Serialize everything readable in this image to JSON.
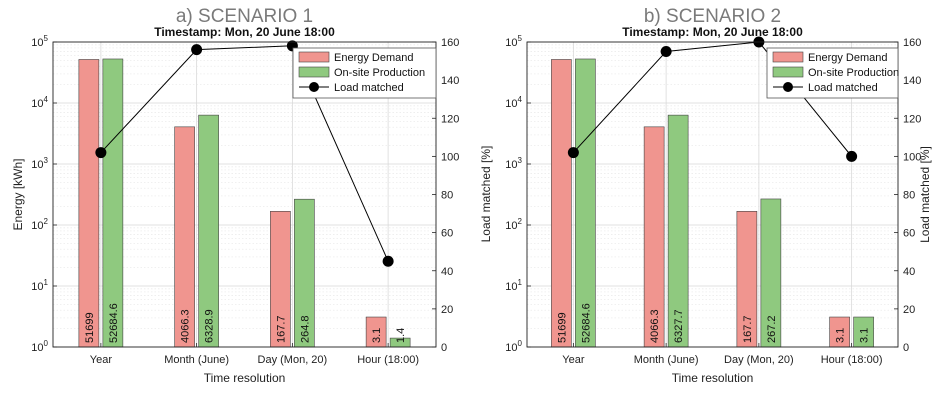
{
  "colors": {
    "demand": "#f0958f",
    "production": "#8fc97f",
    "line": "#000000",
    "grid": "#d9d9d9"
  },
  "chart_data": [
    {
      "type": "bar",
      "title": "a)   SCENARIO 1",
      "subtitle": "Timestamp: Mon, 20 June 18:00",
      "xlabel": "Time resolution",
      "ylabel": "Energy [kWh]",
      "ylabel_right": "Load matched [%]",
      "yscale": "log",
      "ylim": [
        1,
        100000
      ],
      "ylim_right": [
        0,
        160
      ],
      "y_ticks": [
        "10^0",
        "10^1",
        "10^2",
        "10^3",
        "10^4",
        "10^5"
      ],
      "y_ticks_right": [
        "0",
        "20",
        "40",
        "60",
        "80",
        "100",
        "120",
        "140",
        "160"
      ],
      "categories": [
        "Year",
        "Month (June)",
        "Day (Mon, 20)",
        "Hour (18:00)"
      ],
      "series": [
        {
          "name": "Energy Demand",
          "values": [
            51699,
            4066.3,
            167.7,
            3.1
          ],
          "labels": [
            "51699",
            "4066.3",
            "167.7",
            "3.1"
          ]
        },
        {
          "name": "On-site Production",
          "values": [
            52684.6,
            6328.9,
            264.8,
            1.4
          ],
          "labels": [
            "52684.6",
            "6328.9",
            "264.8",
            "1.4"
          ]
        }
      ],
      "line_series": {
        "name": "Load matched",
        "axis": "right",
        "values": [
          102,
          156,
          158,
          45
        ]
      },
      "grid": true,
      "legend": "top-right"
    },
    {
      "type": "bar",
      "title": "b) SCENARIO 2",
      "subtitle": "Timestamp: Mon, 20 June 18:00",
      "xlabel": "Time resolution",
      "ylabel": "",
      "ylabel_right": "Load matched [%]",
      "yscale": "log",
      "ylim": [
        1,
        100000
      ],
      "ylim_right": [
        0,
        160
      ],
      "y_ticks": [
        "10^0",
        "10^1",
        "10^2",
        "10^3",
        "10^4",
        "10^5"
      ],
      "y_ticks_right": [
        "0",
        "20",
        "40",
        "60",
        "80",
        "100",
        "120",
        "140",
        "160"
      ],
      "categories": [
        "Year",
        "Month (June)",
        "Day (Mon, 20)",
        "Hour (18:00)"
      ],
      "series": [
        {
          "name": "Energy Demand",
          "values": [
            51699,
            4066.3,
            167.7,
            3.1
          ],
          "labels": [
            "51699",
            "4066.3",
            "167.7",
            "3.1"
          ]
        },
        {
          "name": "On-site Production",
          "values": [
            52684.6,
            6327.7,
            267.2,
            3.1
          ],
          "labels": [
            "52684.6",
            "6327.7",
            "267.2",
            "3.1"
          ]
        }
      ],
      "line_series": {
        "name": "Load matched",
        "axis": "right",
        "values": [
          102,
          155,
          160,
          100
        ]
      },
      "grid": true,
      "legend": "top-right"
    }
  ]
}
